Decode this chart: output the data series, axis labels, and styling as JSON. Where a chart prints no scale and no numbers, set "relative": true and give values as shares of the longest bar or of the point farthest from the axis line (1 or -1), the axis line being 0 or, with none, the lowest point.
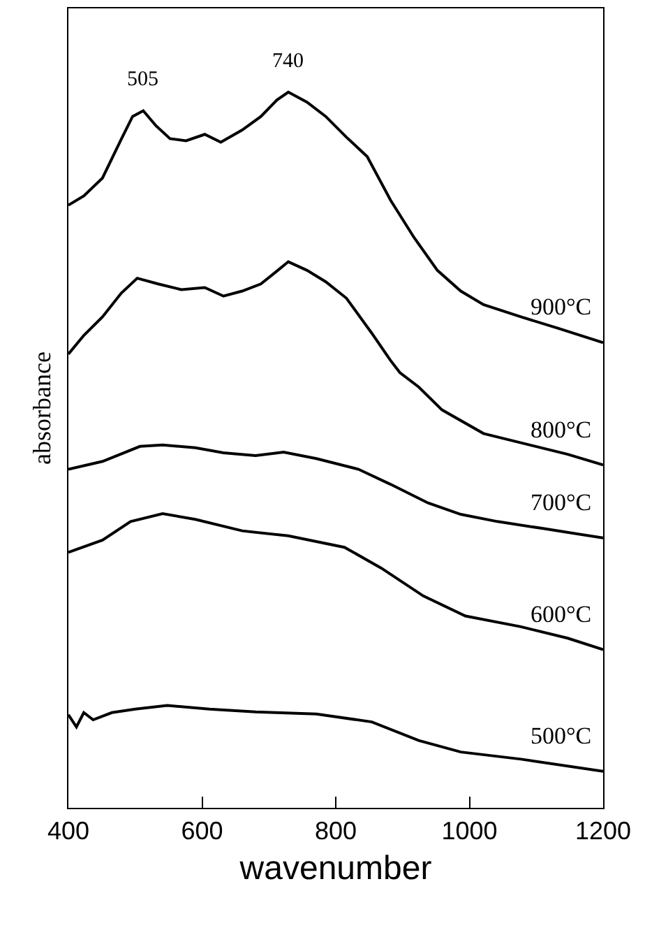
{
  "chart_data": {
    "type": "line",
    "relative": true,
    "xlabel": "wavenumber",
    "ylabel": "absorbance",
    "xlim": [
      400,
      1200
    ],
    "xticks": [
      400,
      600,
      800,
      1000,
      1200
    ],
    "grid": false,
    "legend": false,
    "tick_labels": "x",
    "marker": "none",
    "line_style": "solid",
    "annotations": [
      "505",
      "740"
    ],
    "series": [
      {
        "name": "900°C",
        "color": "#000000",
        "x": [
          400,
          423,
          451,
          479,
          496,
          512,
          531,
          552,
          576,
          604,
          628,
          660,
          688,
          712,
          729,
          757,
          785,
          816,
          847,
          882,
          917,
          952,
          987,
          1021,
          1077,
          1133,
          1200
        ],
        "values": [
          0.842,
          0.855,
          0.88,
          0.934,
          0.966,
          0.974,
          0.953,
          0.935,
          0.932,
          0.941,
          0.93,
          0.947,
          0.966,
          0.989,
          1.0,
          0.986,
          0.966,
          0.937,
          0.91,
          0.849,
          0.797,
          0.751,
          0.722,
          0.703,
          0.686,
          0.67,
          0.65
        ]
      },
      {
        "name": "800°C",
        "color": "#000000",
        "x": [
          400,
          423,
          451,
          479,
          503,
          534,
          569,
          604,
          632,
          660,
          688,
          712,
          729,
          757,
          785,
          816,
          854,
          882,
          896,
          924,
          959,
          1021,
          1077,
          1147,
          1200
        ],
        "values": [
          0.634,
          0.66,
          0.686,
          0.719,
          0.74,
          0.732,
          0.724,
          0.727,
          0.715,
          0.722,
          0.732,
          0.75,
          0.763,
          0.751,
          0.735,
          0.712,
          0.663,
          0.625,
          0.608,
          0.588,
          0.556,
          0.523,
          0.51,
          0.494,
          0.479
        ]
      },
      {
        "name": "700°C",
        "color": "#000000",
        "x": [
          400,
          451,
          507,
          541,
          590,
          632,
          680,
          722,
          771,
          834,
          882,
          938,
          987,
          1042,
          1112,
          1200
        ],
        "values": [
          0.473,
          0.484,
          0.505,
          0.507,
          0.503,
          0.496,
          0.492,
          0.497,
          0.488,
          0.473,
          0.452,
          0.426,
          0.41,
          0.4,
          0.39,
          0.377
        ]
      },
      {
        "name": "600°C",
        "color": "#000000",
        "x": [
          400,
          451,
          493,
          541,
          590,
          660,
          729,
          813,
          868,
          931,
          994,
          1077,
          1147,
          1200
        ],
        "values": [
          0.357,
          0.374,
          0.4,
          0.411,
          0.403,
          0.387,
          0.38,
          0.364,
          0.335,
          0.296,
          0.268,
          0.253,
          0.237,
          0.221
        ]
      },
      {
        "name": "500°C",
        "color": "#000000",
        "x": [
          400,
          412,
          423,
          437,
          465,
          500,
          548,
          611,
          680,
          771,
          854,
          924,
          987,
          1077,
          1200
        ],
        "values": [
          0.13,
          0.113,
          0.133,
          0.123,
          0.133,
          0.138,
          0.143,
          0.138,
          0.134,
          0.131,
          0.12,
          0.094,
          0.078,
          0.068,
          0.051
        ]
      }
    ]
  }
}
